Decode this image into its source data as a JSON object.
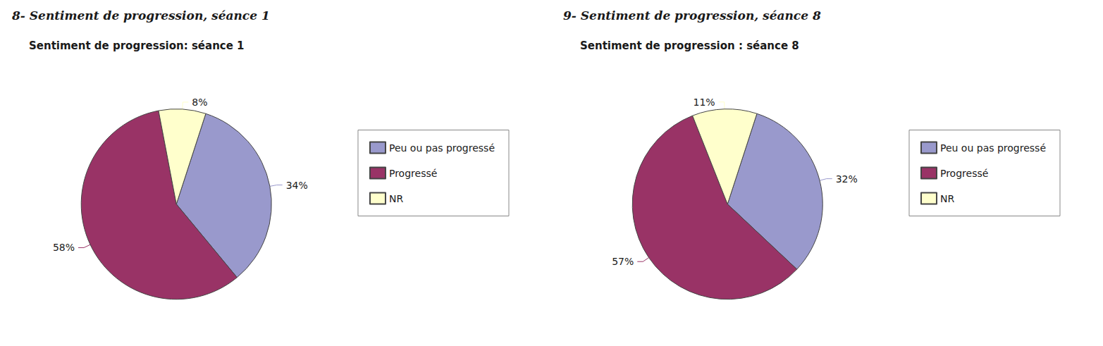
{
  "chart_data": [
    {
      "type": "pie",
      "title": "8- Sentiment de progression, séance 1",
      "subtitle": "Sentiment de progression: séance 1",
      "categories": [
        "Peu ou pas progressé",
        "Progressé",
        "NR"
      ],
      "values": [
        34,
        58,
        8
      ],
      "value_labels": [
        "34%",
        "58%",
        "8%"
      ],
      "colors": [
        "#9999cc",
        "#993366",
        "#ffffcc"
      ],
      "data_labels": true,
      "legend": "right"
    },
    {
      "type": "pie",
      "title": "9- Sentiment de progression, séance 8",
      "subtitle": "Sentiment de progression : séance 8",
      "categories": [
        "Peu ou pas progressé",
        "Progressé",
        "NR"
      ],
      "values": [
        32,
        57,
        11
      ],
      "value_labels": [
        "32%",
        "57%",
        "11%"
      ],
      "colors": [
        "#9999cc",
        "#993366",
        "#ffffcc"
      ],
      "data_labels": true,
      "legend": "right"
    }
  ]
}
